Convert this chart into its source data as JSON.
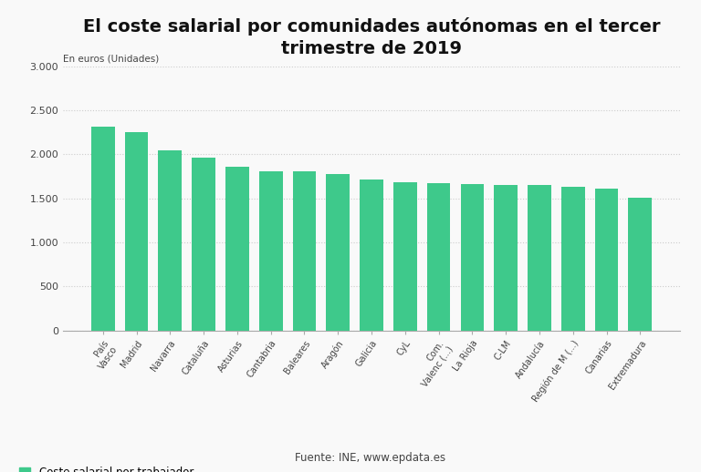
{
  "title": "El coste salarial por comunidades autónomas en el tercer\ntrimestre de 2019",
  "ylabel": "En euros (Unidades)",
  "categories": [
    "País\nVasco",
    "Madrid",
    "Navarra",
    "Cataluña",
    "Asturias",
    "Cantabria",
    "Baleares",
    "Aragón",
    "Galicia",
    "CyL",
    "Com.\nValenc (...)",
    "La Rioja",
    "C-LM",
    "Andalucía",
    "Región de M (...)",
    "Canarias",
    "Extremadura"
  ],
  "values": [
    2310,
    2255,
    2045,
    1965,
    1855,
    1810,
    1805,
    1775,
    1710,
    1680,
    1675,
    1660,
    1650,
    1650,
    1635,
    1605,
    1510
  ],
  "bar_color": "#3EC98B",
  "ylim": [
    0,
    3000
  ],
  "yticks": [
    0,
    500,
    1000,
    1500,
    2000,
    2500,
    3000
  ],
  "ytick_labels": [
    "0",
    "500",
    "1.000",
    "1.500",
    "2.000",
    "2.500",
    "3.000"
  ],
  "legend_label": "Coste salarial por trabajador",
  "source_text": "Fuente: INE, www.epdata.es",
  "background_color": "#f9f9f9",
  "grid_color": "#cccccc",
  "title_fontsize": 14,
  "tick_fontsize": 8,
  "legend_fontsize": 8.5
}
